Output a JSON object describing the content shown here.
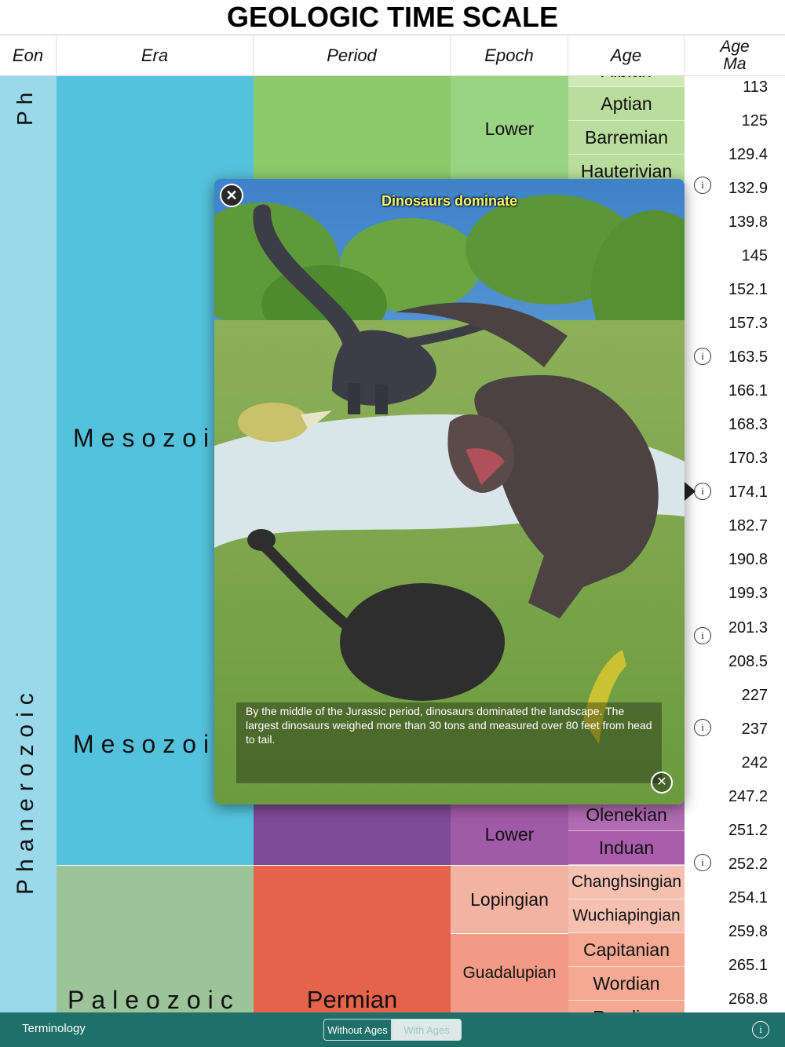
{
  "title": "GEOLOGIC TIME SCALE",
  "headers": {
    "eon": "Eon",
    "era": "Era",
    "period": "Period",
    "epoch": "Epoch",
    "age": "Age",
    "age_ma_top": "Age",
    "age_ma_bottom": "Ma"
  },
  "eon": {
    "phanerozoic_top": "Ph",
    "phanerozoic": "Phanerozoic"
  },
  "era": {
    "mesozoic_1": "Mesozoi",
    "mesozoic_2": "Mesozoi",
    "paleozoic": "Paleozoic"
  },
  "period": {
    "permian": "Permian"
  },
  "epochs": {
    "lower_1": "Lower",
    "lower_2": "Lower",
    "lopingian": "Lopingian",
    "guadalupian": "Guadalupian"
  },
  "ages": {
    "albian": "Albian",
    "aptian": "Aptian",
    "barremian": "Barremian",
    "hauterivian": "Hauterivian",
    "olenekian": "Olenekian",
    "induan": "Induan",
    "changhsingian": "Changhsingian",
    "wuchiapingian": "Wuchiapingian",
    "capitanian": "Capitanian",
    "wordian": "Wordian",
    "roadian": "Roadian"
  },
  "ma_values": [
    "113",
    "125",
    "129.4",
    "132.9",
    "139.8",
    "145",
    "152.1",
    "157.3",
    "163.5",
    "166.1",
    "168.3",
    "170.3",
    "174.1",
    "182.7",
    "190.8",
    "199.3",
    "201.3",
    "208.5",
    "227",
    "237",
    "242",
    "247.2",
    "251.2",
    "252.2",
    "254.1",
    "259.8",
    "265.1",
    "268.8"
  ],
  "info_symbol": "i",
  "popup": {
    "title": "Dinosaurs dominate",
    "caption": "By the middle of the Jurassic period, dinosaurs dominated the landscape. The largest dinosaurs weighed more than 30 tons and measured over 80 feet from head to tail."
  },
  "toolbar": {
    "terminology": "Terminology",
    "without_ages": "Without Ages",
    "with_ages": "With Ages"
  },
  "colors": {
    "eon": "#9ad9ea",
    "era_mesozoic": "#67c5ca",
    "era_paleozoic": "#99c08d",
    "cretaceous": "#7fc64e",
    "triassic": "#812b92",
    "permian": "#f04028",
    "toolbar": "#1f6f6a"
  }
}
